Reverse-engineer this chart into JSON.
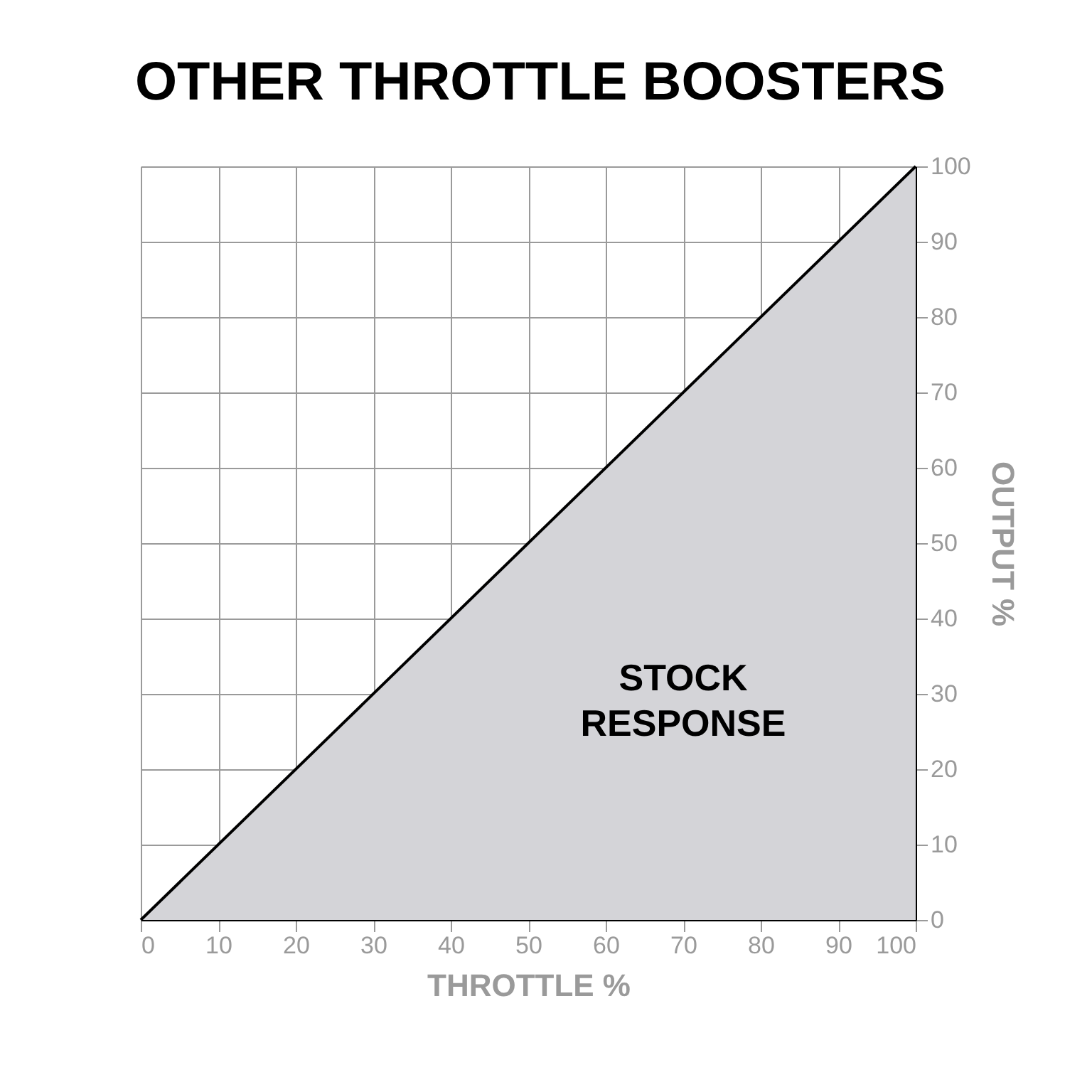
{
  "chart_data": {
    "type": "area",
    "title": "OTHER THROTTLE BOOSTERS",
    "xlabel": "THROTTLE %",
    "ylabel": "OUTPUT %",
    "x": [
      0,
      100
    ],
    "series": [
      {
        "name": "STOCK RESPONSE",
        "color": "#d4d4d8",
        "values": [
          0,
          100
        ]
      }
    ],
    "xlim": [
      0,
      100
    ],
    "ylim": [
      0,
      100
    ],
    "xticks": [
      0,
      10,
      20,
      30,
      40,
      50,
      60,
      70,
      80,
      90,
      100
    ],
    "yticks": [
      0,
      10,
      20,
      30,
      40,
      50,
      60,
      70,
      80,
      90,
      100
    ],
    "grid": true
  }
}
